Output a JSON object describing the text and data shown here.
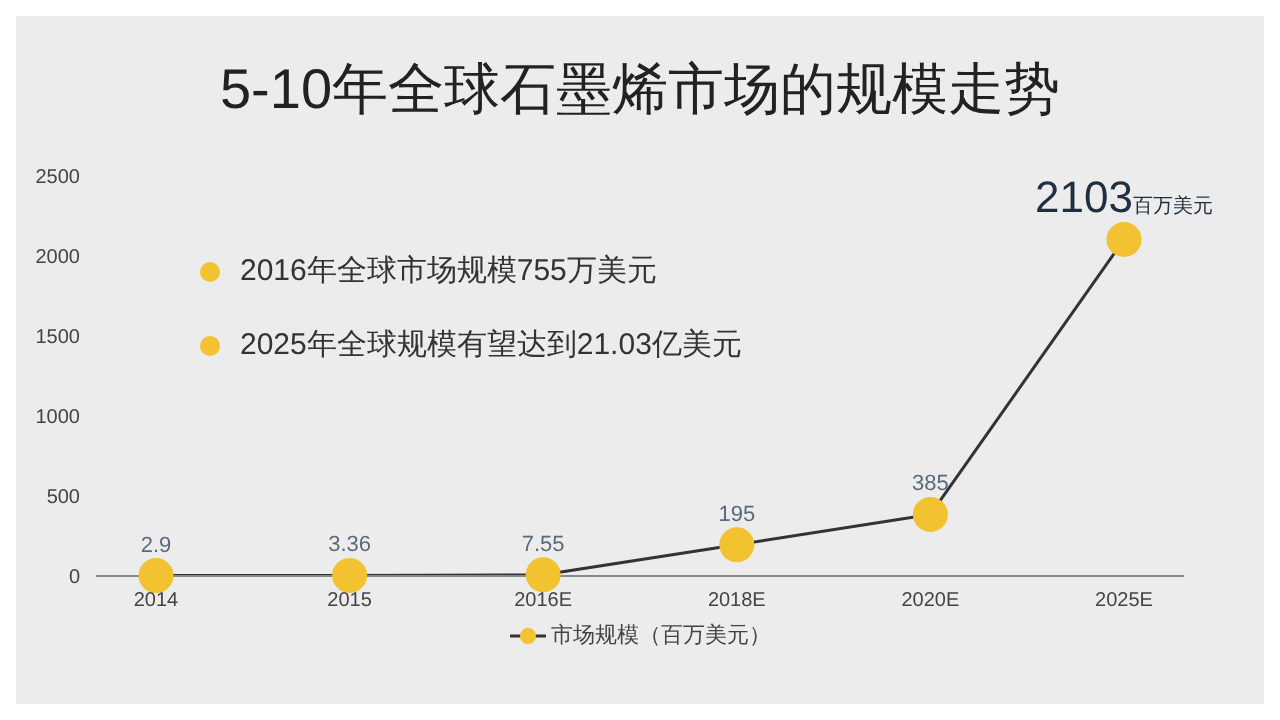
{
  "chart_data": {
    "type": "line",
    "title": "5-10年全球石墨烯市场的规模走势",
    "categories": [
      "2014",
      "2015",
      "2016E",
      "2018E",
      "2020E",
      "2025E"
    ],
    "series": [
      {
        "name": "市场规模（百万美元）",
        "color": "#f2c230",
        "values": [
          2.9,
          3.36,
          7.55,
          195,
          385,
          2103
        ]
      }
    ],
    "value_labels": [
      "2.9",
      "3.36",
      "7.55",
      "195",
      "385",
      "2103百万美元"
    ],
    "ylim": [
      0,
      2500
    ],
    "yticks": [
      0,
      500,
      1000,
      1500,
      2000,
      2500
    ],
    "grid": false,
    "legend": "bottom",
    "marker": "circle",
    "line_style": "solid",
    "annotations": [
      "2016年全球市场规模755万美元",
      "2025年全球规模有望达到21.03亿美元"
    ]
  }
}
